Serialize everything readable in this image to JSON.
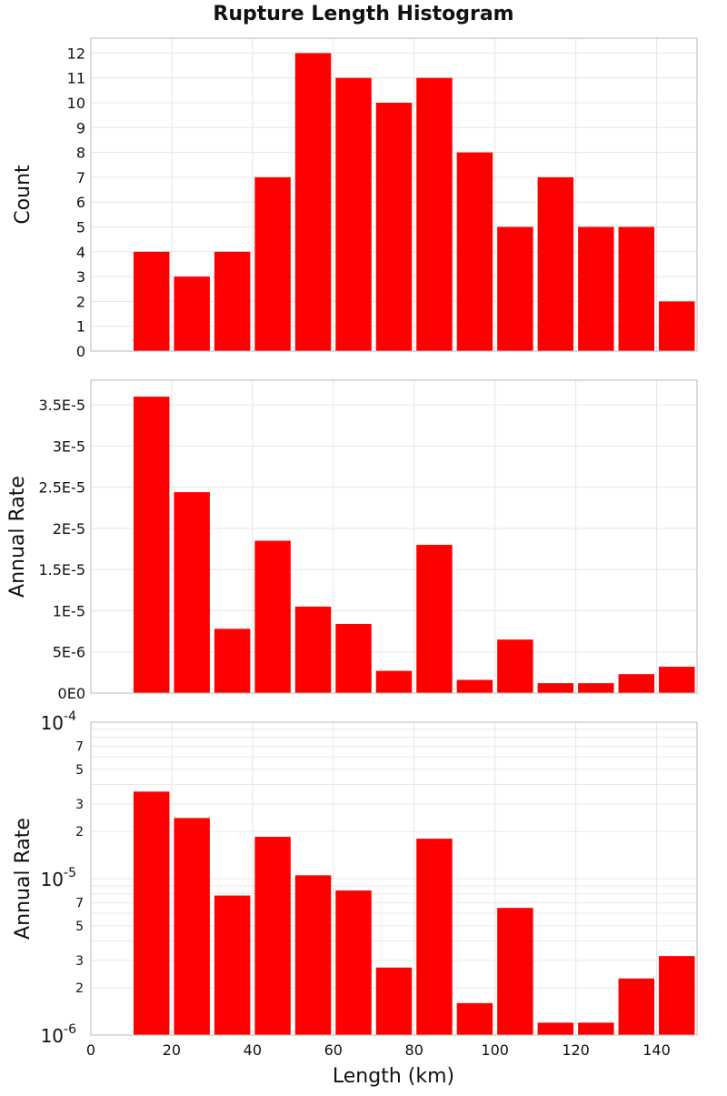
{
  "chart_data": {
    "title": "Rupture Length Histogram",
    "xlabel": "Length (km)",
    "xlim": [
      0,
      150
    ],
    "xticks": [
      0,
      20,
      40,
      60,
      80,
      100,
      120,
      140
    ],
    "bin_width": 10,
    "bar_color": "#ff0000",
    "grid": true,
    "panels": [
      {
        "type": "bar",
        "ylabel": "Count",
        "scale": "linear",
        "ylim": [
          0,
          12.6
        ],
        "yticks": [
          0,
          1,
          2,
          3,
          4,
          5,
          6,
          7,
          8,
          9,
          10,
          11,
          12
        ],
        "ytick_labels": [
          "0",
          "1",
          "2",
          "3",
          "4",
          "5",
          "6",
          "7",
          "8",
          "9",
          "10",
          "11",
          "12"
        ],
        "x": [
          15,
          25,
          35,
          45,
          55,
          65,
          75,
          85,
          95,
          105,
          115,
          125,
          135,
          145
        ],
        "values": [
          4,
          3,
          4,
          7,
          12,
          11,
          10,
          11,
          8,
          5,
          7,
          5,
          5,
          2
        ]
      },
      {
        "type": "bar",
        "ylabel": "Annual Rate",
        "scale": "linear",
        "ylim": [
          0,
          3.8e-05
        ],
        "yticks": [
          0,
          5e-06,
          1e-05,
          1.5e-05,
          2e-05,
          2.5e-05,
          3e-05,
          3.5e-05
        ],
        "ytick_labels": [
          "0E0",
          "5E-6",
          "1E-5",
          "1.5E-5",
          "2E-5",
          "2.5E-5",
          "3E-5",
          "3.5E-5"
        ],
        "x": [
          15,
          25,
          35,
          45,
          55,
          65,
          75,
          85,
          95,
          105,
          115,
          125,
          135,
          145
        ],
        "values": [
          3.6e-05,
          2.44e-05,
          7.8e-06,
          1.85e-05,
          1.05e-05,
          8.4e-06,
          2.7e-06,
          1.8e-05,
          1.6e-06,
          6.5e-06,
          1.2e-06,
          1.2e-06,
          2.3e-06,
          3.2e-06
        ]
      },
      {
        "type": "bar",
        "ylabel": "Annual Rate",
        "scale": "log",
        "ylim": [
          1e-06,
          0.0001
        ],
        "major_ticks": [
          {
            "value": 1e-06,
            "base": "10",
            "exp": "-6"
          },
          {
            "value": 1e-05,
            "base": "10",
            "exp": "-5"
          },
          {
            "value": 0.0001,
            "base": "10",
            "exp": "-4"
          }
        ],
        "minor_labels": [
          {
            "value": 2e-06,
            "label": "2"
          },
          {
            "value": 3e-06,
            "label": "3"
          },
          {
            "value": 5e-06,
            "label": "5"
          },
          {
            "value": 7e-06,
            "label": "7"
          },
          {
            "value": 2e-05,
            "label": "2"
          },
          {
            "value": 3e-05,
            "label": "3"
          },
          {
            "value": 5e-05,
            "label": "5"
          },
          {
            "value": 7e-05,
            "label": "7"
          }
        ],
        "x": [
          15,
          25,
          35,
          45,
          55,
          65,
          75,
          85,
          95,
          105,
          115,
          125,
          135,
          145
        ],
        "values": [
          3.6e-05,
          2.44e-05,
          7.8e-06,
          1.85e-05,
          1.05e-05,
          8.4e-06,
          2.7e-06,
          1.8e-05,
          1.6e-06,
          6.5e-06,
          1.2e-06,
          1.2e-06,
          2.3e-06,
          3.2e-06
        ]
      }
    ]
  }
}
